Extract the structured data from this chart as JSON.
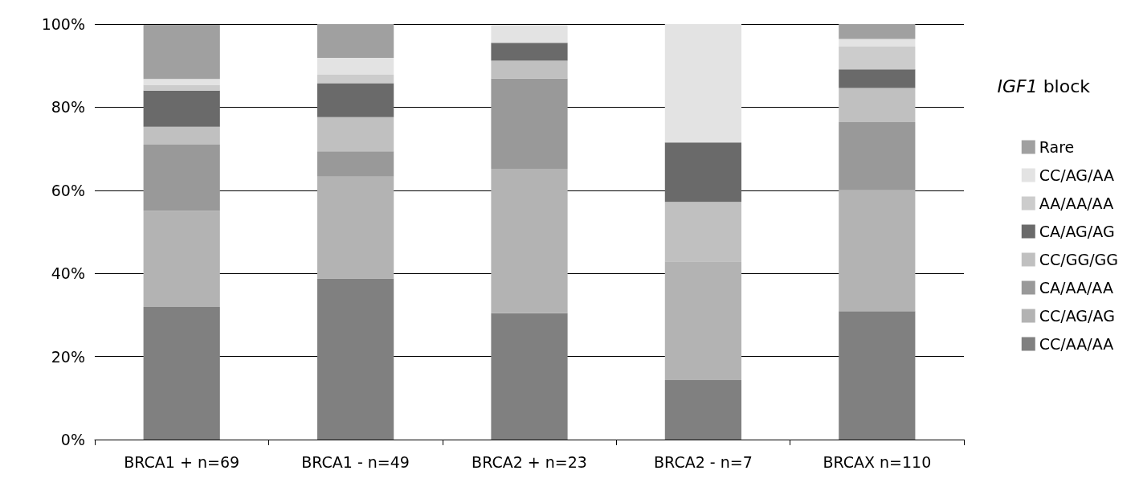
{
  "chart_data": {
    "type": "bar",
    "stacked": true,
    "legend_title": "IGF1 block",
    "legend": "right",
    "grid": "y",
    "categories": [
      "BRCA1 + n=69",
      "BRCA1 - n=49",
      "BRCA2 + n=23",
      "BRCA2 - n=7",
      "BRCAX n=110"
    ],
    "series": [
      {
        "name": "CC/AA/AA",
        "color": "#808080",
        "values": [
          31.9,
          38.8,
          30.4,
          14.3,
          30.9
        ]
      },
      {
        "name": "CC/AG/AG",
        "color": "#b3b3b3",
        "values": [
          23.2,
          24.5,
          34.8,
          28.6,
          29.1
        ]
      },
      {
        "name": "CA/AA/AA",
        "color": "#999999",
        "values": [
          15.9,
          6.1,
          21.7,
          0,
          16.4
        ]
      },
      {
        "name": "CC/GG/GG",
        "color": "#c0c0c0",
        "values": [
          4.3,
          8.2,
          4.3,
          14.3,
          8.2
        ]
      },
      {
        "name": "CA/AG/AG",
        "color": "#6a6a6a",
        "values": [
          8.7,
          8.2,
          4.3,
          14.3,
          4.5
        ]
      },
      {
        "name": "AA/AA/AA",
        "color": "#cccccc",
        "values": [
          1.4,
          2.0,
          0,
          0,
          5.5
        ]
      },
      {
        "name": "CC/AG/AA",
        "color": "#e3e3e3",
        "values": [
          1.4,
          4.1,
          4.3,
          28.6,
          1.8
        ]
      },
      {
        "name": "Rare",
        "color": "#a0a0a0",
        "values": [
          13.0,
          8.2,
          0,
          0,
          3.6
        ]
      }
    ],
    "ylim": [
      0,
      100
    ],
    "yticks": [
      {
        "value": 0,
        "label": "0%"
      },
      {
        "value": 20,
        "label": "20%"
      },
      {
        "value": 40,
        "label": "40%"
      },
      {
        "value": 60,
        "label": "60%"
      },
      {
        "value": 80,
        "label": "80%"
      },
      {
        "value": 100,
        "label": "100%"
      }
    ]
  }
}
